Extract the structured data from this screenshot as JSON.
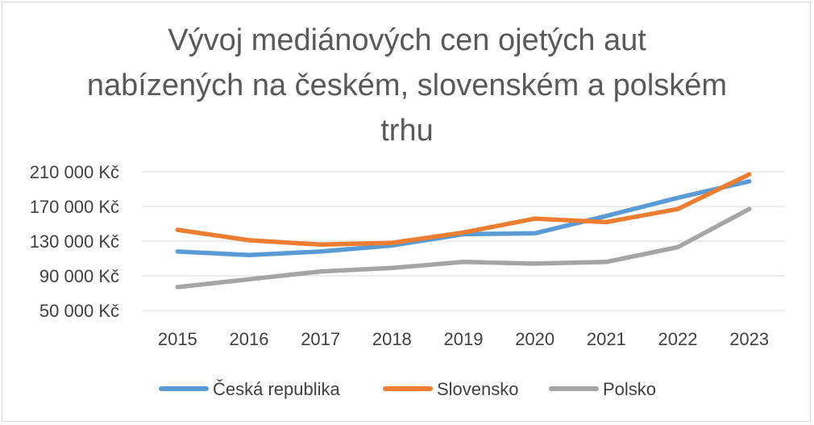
{
  "chart_data": {
    "type": "line",
    "title_lines": [
      "Vývoj mediánových cen ojetých aut",
      "nabízených na českém, slovenském a polském",
      "trhu"
    ],
    "categories": [
      "2015",
      "2016",
      "2017",
      "2018",
      "2019",
      "2020",
      "2021",
      "2022",
      "2023"
    ],
    "y_ticks": [
      "50 000 Kč",
      "90 000 Kč",
      "130 000 Kč",
      "170 000 Kč",
      "210 000 Kč"
    ],
    "y_tick_values": [
      50000,
      90000,
      130000,
      170000,
      210000
    ],
    "ylim": [
      50000,
      210000
    ],
    "grid": true,
    "legend_position": "bottom",
    "series": [
      {
        "name": "Česká republika",
        "color": "#5b9bd5",
        "values": [
          118000,
          114000,
          118000,
          125000,
          138000,
          139000,
          159000,
          180000,
          199000
        ]
      },
      {
        "name": "Slovensko",
        "color": "#ed7d31",
        "values": [
          143000,
          131000,
          126000,
          128000,
          140000,
          156000,
          152000,
          167000,
          207000
        ]
      },
      {
        "name": "Polsko",
        "color": "#a5a5a5",
        "values": [
          77000,
          86000,
          95000,
          99000,
          106000,
          104000,
          106000,
          123000,
          167000
        ]
      }
    ]
  }
}
